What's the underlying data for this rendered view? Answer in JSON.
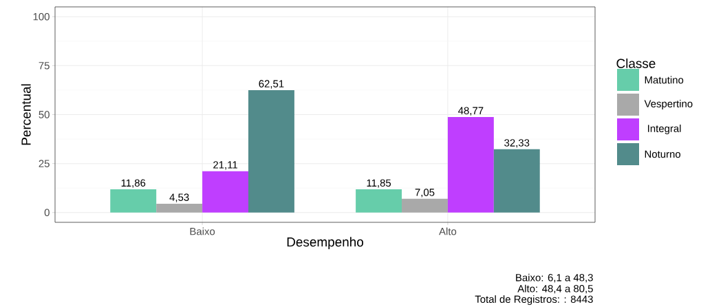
{
  "chart_data": {
    "type": "bar",
    "xlabel": "Desempenho",
    "ylabel": "Percentual",
    "legend_title": "Classe",
    "categories": [
      "Baixo",
      "Alto"
    ],
    "series": [
      {
        "name": "Matutino",
        "color": "#66cdaa",
        "values": [
          11.86,
          11.85
        ],
        "value_labels": [
          "11,86",
          "11,85"
        ]
      },
      {
        "name": "Vespertino",
        "color": "#a9a9a9",
        "values": [
          4.53,
          7.05
        ],
        "value_labels": [
          "4,53",
          "7,05"
        ]
      },
      {
        "name": " Integral",
        "color": "#bf3eff",
        "values": [
          21.11,
          48.77
        ],
        "value_labels": [
          "21,11",
          "48,77"
        ]
      },
      {
        "name": "Noturno",
        "color": "#528b8b",
        "values": [
          62.51,
          32.33
        ],
        "value_labels": [
          "62,51",
          "32,33"
        ]
      }
    ],
    "ylim": [
      -5,
      105
    ],
    "yticks": [
      0,
      25,
      50,
      75,
      100
    ],
    "grid": true,
    "legend": "right",
    "annotations": [
      "Baixo: 6,1 a 48,3",
      "Alto: 48,4 a 80,5",
      "Total de Registros: : 8443"
    ]
  }
}
